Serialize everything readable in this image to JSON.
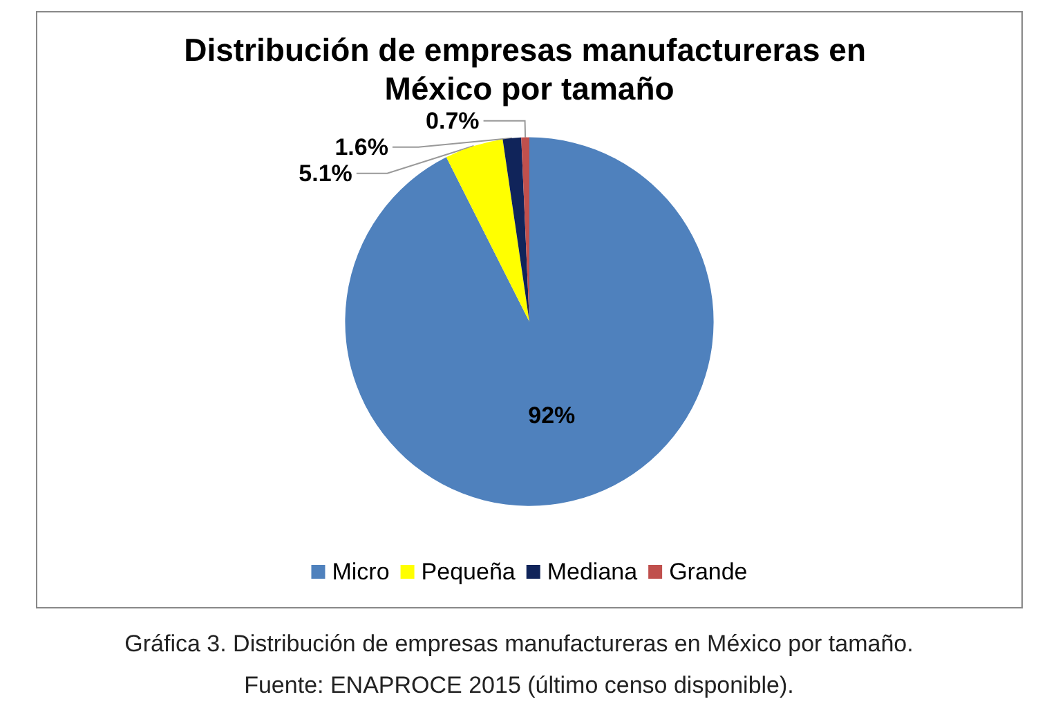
{
  "chart_data": {
    "type": "pie",
    "title": "Distribución de empresas manufactureras en México por tamaño",
    "categories": [
      "Micro",
      "Pequeña",
      "Mediana",
      "Grande"
    ],
    "values": [
      92,
      5.1,
      1.6,
      0.7
    ],
    "value_labels": [
      "92%",
      "5.1%",
      "1.6%",
      "0.7%"
    ],
    "colors": [
      "#4f81bd",
      "#ffff00",
      "#10245a",
      "#c0504d"
    ],
    "legend": "bottom",
    "annotations": [
      "Gráfica 3. Distribución de empresas manufactureras en México por tamaño.",
      "Fuente: ENAPROCE 2015 (último censo disponible)."
    ]
  }
}
